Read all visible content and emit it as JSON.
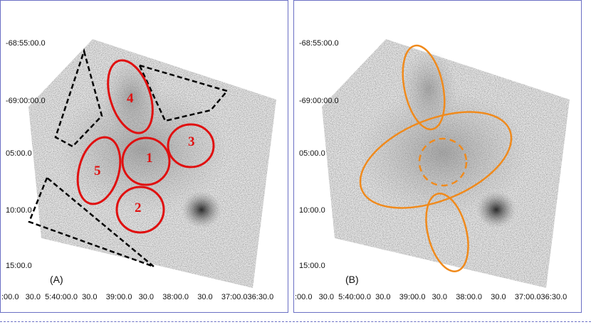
{
  "panel_a": {
    "label": "(A)",
    "y_ticks": [
      "-68:55:00.0",
      "-69:00:00.0",
      "05:00.0",
      "10:00.0",
      "15:00.0"
    ],
    "x_ticks": ":00.0   30.0  5:40:00.0  30.0    39:00.0   30.0    38:00.0    30.0    37:00.036:30.0",
    "regions": [
      "1",
      "2",
      "3",
      "4",
      "5"
    ],
    "region_color": "#e01010",
    "background_region_color": "#000000"
  },
  "panel_b": {
    "label": "(B)",
    "y_ticks": [
      "-68:55:00.0",
      "-69:00:00.0",
      "05:00.0",
      "10:00.0",
      "15:00.0"
    ],
    "x_ticks": ":00.0   30.0  5:40:00.0  30.0    39:00.0   30.0    38:00.0    30.0    37:00.036:30.0",
    "region_color": "#f08a1c"
  }
}
